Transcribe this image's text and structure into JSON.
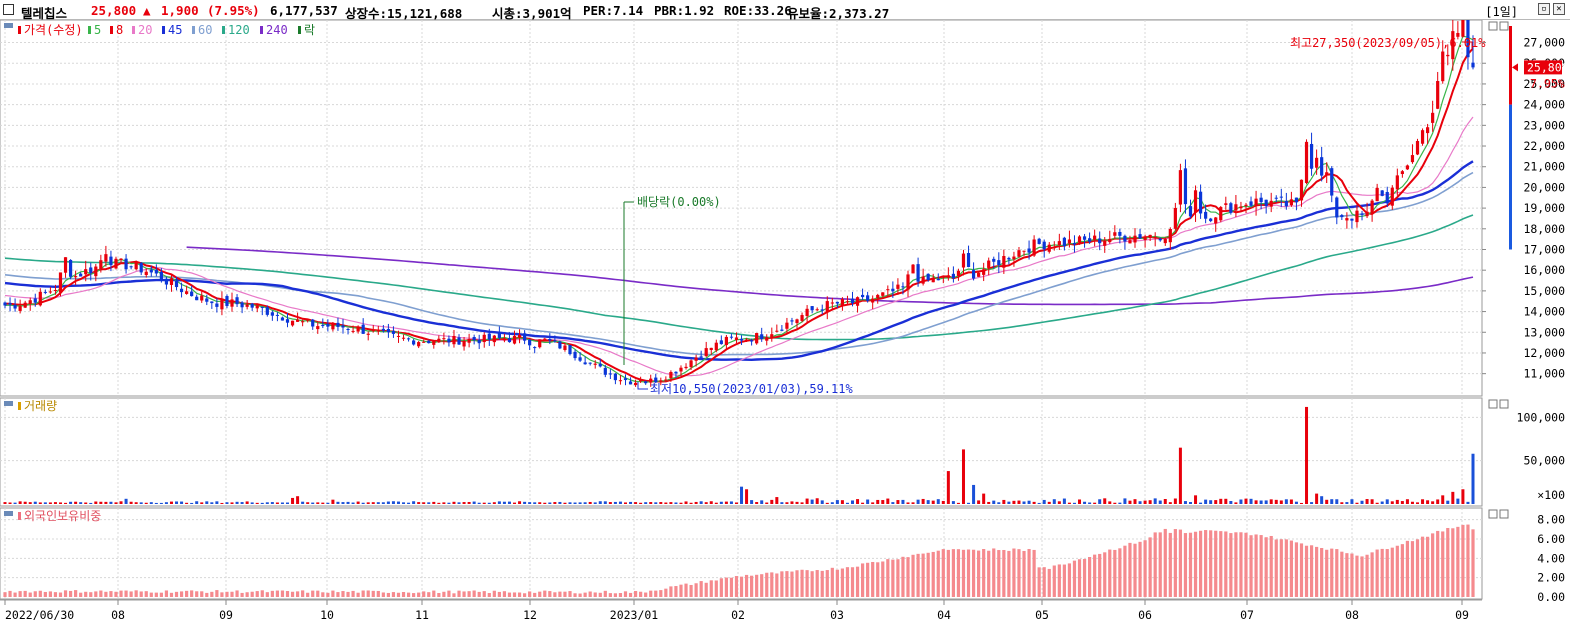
{
  "header": {
    "stock_name": "텔레칩스",
    "price": "25,800",
    "change_arrow": "▲",
    "change": "1,900",
    "change_pct": "(7.95%)",
    "volume": "6,177,537",
    "listed_shares": "상장수:15,121,688",
    "market_cap": "시총:3,901억",
    "per": "PER:7.14",
    "pbr": "PBR:1.92",
    "roe": "ROE:33.26",
    "float": "유보율:2,373.27",
    "period": "[1일]",
    "colors": {
      "up": "#e8000b",
      "down": "#0a36d8",
      "text": "#000000"
    }
  },
  "price_panel": {
    "legend": {
      "main": "가격(수정)",
      "ma": [
        {
          "label": "5",
          "color": "#39b54a"
        },
        {
          "label": "8",
          "color": "#e8000b"
        },
        {
          "label": "20",
          "color": "#e879c8"
        },
        {
          "label": "45",
          "color": "#1a2fd6"
        },
        {
          "label": "60",
          "color": "#7f9fd0"
        },
        {
          "label": "120",
          "color": "#2aa98a"
        },
        {
          "label": "240",
          "color": "#7a2bc7"
        },
        {
          "label": "락",
          "color": "#1a7a2a"
        }
      ]
    },
    "y_ticks": [
      "27,000",
      "26,000",
      "25,000",
      "24,000",
      "23,000",
      "22,000",
      "21,000",
      "20,000",
      "19,000",
      "18,000",
      "17,000",
      "16,000",
      "15,000",
      "14,000",
      "13,000",
      "12,000",
      "11,000"
    ],
    "current_price_label": "25,800",
    "current_change_label": "7.95%",
    "high_annotation": "최고27,350(2023/09/05),6.01%",
    "low_annotation": "최저10,550(2023/01/03),59.11%",
    "dividend_annotation": "배당락(0.00%)"
  },
  "volume_panel": {
    "title": "거래량",
    "y_ticks": [
      "100,000",
      "50,000"
    ],
    "unit": "×100"
  },
  "foreign_panel": {
    "title": "외국인보유비중",
    "y_ticks": [
      "8.00",
      "6.00",
      "4.00",
      "2.00",
      "0.00"
    ]
  },
  "x_axis": {
    "labels": [
      "2022/06/30",
      "08",
      "09",
      "10",
      "11",
      "12",
      "2023/01",
      "02",
      "03",
      "04",
      "05",
      "06",
      "07",
      "08",
      "09"
    ]
  },
  "chart_data": {
    "type": "candlestick",
    "title": "텔레칩스",
    "period": "daily",
    "x_start": "2022/06/30",
    "x_end": "2023/09/05",
    "price_ylim": [
      10500,
      27800
    ],
    "close_anchors": [
      {
        "x": "2022/06/30",
        "close": 14300
      },
      {
        "x": "2022/08",
        "close": 16300
      },
      {
        "x": "2022/09",
        "close": 14400
      },
      {
        "x": "2022/10",
        "close": 13300
      },
      {
        "x": "2022/11",
        "close": 12600
      },
      {
        "x": "2022/12",
        "close": 12700
      },
      {
        "x": "2023/01/03",
        "close": 10600
      },
      {
        "x": "2023/02",
        "close": 12700
      },
      {
        "x": "2023/03",
        "close": 14400
      },
      {
        "x": "2023/04",
        "close": 15600
      },
      {
        "x": "2023/05",
        "close": 17300
      },
      {
        "x": "2023/06",
        "close": 17700
      },
      {
        "x": "2023/07",
        "close": 19300
      },
      {
        "x": "2023/08",
        "close": 18600
      },
      {
        "x": "2023/09/05",
        "close": 25800
      }
    ],
    "high": 27350,
    "low": 10550,
    "ma240_end": 15800,
    "ma120_end": 18500,
    "volume_ylim": [
      0,
      120000
    ],
    "volume_peaks": [
      {
        "x": "2023/02",
        "value": 20000
      },
      {
        "x": "2023/04",
        "value": 63000
      },
      {
        "x": "2023/06",
        "value": 65000
      },
      {
        "x": "2023/07",
        "value": 112000
      },
      {
        "x": "2023/09",
        "value": 58000
      }
    ],
    "foreign_ylim": [
      0,
      9
    ],
    "foreign_anchors": [
      {
        "x": "2022/06/30",
        "value": 0.6
      },
      {
        "x": "2023/01",
        "value": 0.5
      },
      {
        "x": "2023/02",
        "value": 2.2
      },
      {
        "x": "2023/03",
        "value": 3.0
      },
      {
        "x": "2023/04",
        "value": 5.0
      },
      {
        "x": "2023/05",
        "value": 3.0
      },
      {
        "x": "2023/06",
        "value": 7.0
      },
      {
        "x": "2023/07",
        "value": 6.5
      },
      {
        "x": "2023/08",
        "value": 4.3
      },
      {
        "x": "2023/09",
        "value": 7.8
      }
    ]
  }
}
